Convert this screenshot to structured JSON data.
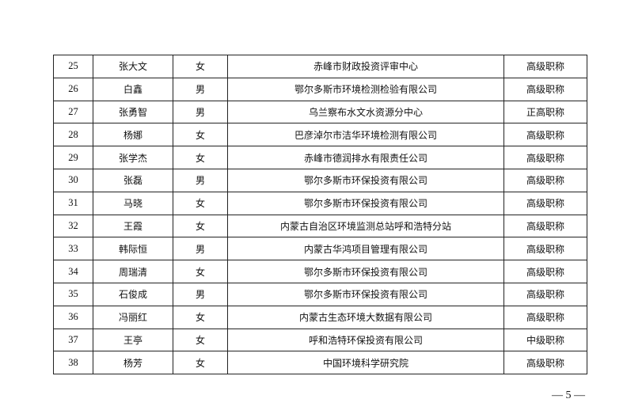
{
  "rows": [
    {
      "no": "25",
      "name": "张大文",
      "gender": "女",
      "org": "赤峰市财政投资评审中心",
      "title": "高级职称"
    },
    {
      "no": "26",
      "name": "白鑫",
      "gender": "男",
      "org": "鄂尔多斯市环境检测检验有限公司",
      "title": "高级职称"
    },
    {
      "no": "27",
      "name": "张勇智",
      "gender": "男",
      "org": "乌兰察布水文水资源分中心",
      "title": "正高职称"
    },
    {
      "no": "28",
      "name": "杨娜",
      "gender": "女",
      "org": "巴彦淖尔市洁华环境检测有限公司",
      "title": "高级职称"
    },
    {
      "no": "29",
      "name": "张学杰",
      "gender": "女",
      "org": "赤峰市德润排水有限责任公司",
      "title": "高级职称"
    },
    {
      "no": "30",
      "name": "张磊",
      "gender": "男",
      "org": "鄂尔多斯市环保投资有限公司",
      "title": "高级职称"
    },
    {
      "no": "31",
      "name": "马晓",
      "gender": "女",
      "org": "鄂尔多斯市环保投资有限公司",
      "title": "高级职称"
    },
    {
      "no": "32",
      "name": "王霞",
      "gender": "女",
      "org": "内蒙古自治区环境监测总站呼和浩特分站",
      "title": "高级职称"
    },
    {
      "no": "33",
      "name": "韩际恒",
      "gender": "男",
      "org": "内蒙古华鸿项目管理有限公司",
      "title": "高级职称"
    },
    {
      "no": "34",
      "name": "周瑞清",
      "gender": "女",
      "org": "鄂尔多斯市环保投资有限公司",
      "title": "高级职称"
    },
    {
      "no": "35",
      "name": "石俊成",
      "gender": "男",
      "org": "鄂尔多斯市环保投资有限公司",
      "title": "高级职称"
    },
    {
      "no": "36",
      "name": "冯丽红",
      "gender": "女",
      "org": "内蒙古生态环境大数据有限公司",
      "title": "高级职称"
    },
    {
      "no": "37",
      "name": "王亭",
      "gender": "女",
      "org": "呼和浩特环保投资有限公司",
      "title": "中级职称"
    },
    {
      "no": "38",
      "name": "杨芳",
      "gender": "女",
      "org": "中国环境科学研究院",
      "title": "高级职称"
    }
  ],
  "page_number": "— 5 —"
}
